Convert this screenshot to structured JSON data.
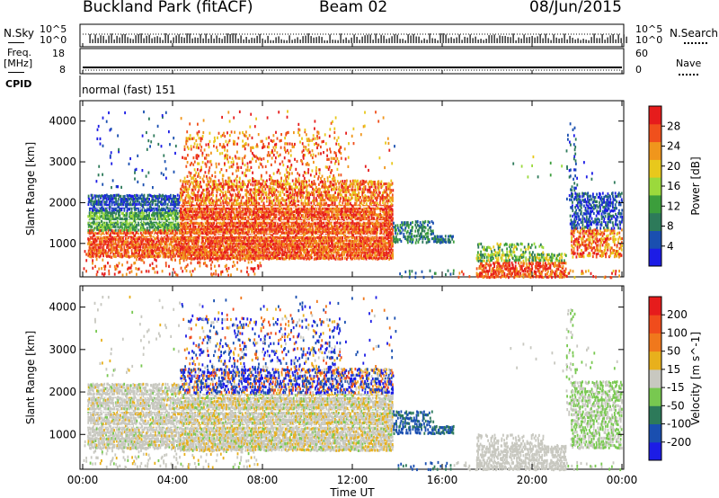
{
  "header": {
    "title": "Buckland Park (fitACF)",
    "beam": "Beam 02",
    "date": "08/Jun/2015"
  },
  "strips": {
    "nsky_label": "N.Sky",
    "nsearch_label": "N.Search",
    "freq_label": "Freq.",
    "freq_unit": "[MHz]",
    "nave_label": "Nave",
    "cpid_label": "CPID",
    "cpid_text": "normal (fast) 151",
    "noise_ticks": [
      "10^5",
      "10^0"
    ],
    "noise_ticks_right": [
      "10^5",
      "10^0"
    ],
    "freq_ticks": [
      "18",
      "8"
    ],
    "nave_ticks": [
      "60",
      "0"
    ]
  },
  "colors": {
    "power": [
      "#1c1ce6",
      "#1a4fb0",
      "#2d7a5a",
      "#3c9e3c",
      "#9bd93c",
      "#e8c81c",
      "#f0961c",
      "#f0501c",
      "#e61c1c"
    ],
    "velocity": [
      "#1c1ce6",
      "#1a4fb0",
      "#2d7a5a",
      "#78c850",
      "#c8c8c0",
      "#e8b01c",
      "#f0781c",
      "#f04c1c",
      "#e61c1c"
    ]
  },
  "chart_data": [
    {
      "type": "heatmap",
      "panel": "power",
      "ylabel": "Slant Range [km]",
      "xlabel": "",
      "xlim": [
        "00:00",
        "24:00"
      ],
      "ylim": [
        180,
        4500
      ],
      "x_ticks": [
        "00:00",
        "04:00",
        "08:00",
        "12:00",
        "16:00",
        "20:00",
        "00:00"
      ],
      "y_ticks": [
        1000,
        2000,
        3000,
        4000
      ],
      "colorbar": {
        "label": "Power [dB]",
        "ticks": [
          28,
          24,
          20,
          16,
          12,
          8,
          4
        ]
      }
    },
    {
      "type": "heatmap",
      "panel": "velocity",
      "ylabel": "Slant Range [km]",
      "xlabel": "Time UT",
      "xlim": [
        "00:00",
        "24:00"
      ],
      "ylim": [
        180,
        4500
      ],
      "x_ticks": [
        "00:00",
        "04:00",
        "08:00",
        "12:00",
        "16:00",
        "20:00",
        "00:00"
      ],
      "y_ticks": [
        1000,
        2000,
        3000,
        4000
      ],
      "colorbar": {
        "label": "Velocity [m s^-1]",
        "ticks": [
          200,
          100,
          50,
          15,
          -15,
          -50,
          -100,
          -200
        ]
      }
    }
  ]
}
